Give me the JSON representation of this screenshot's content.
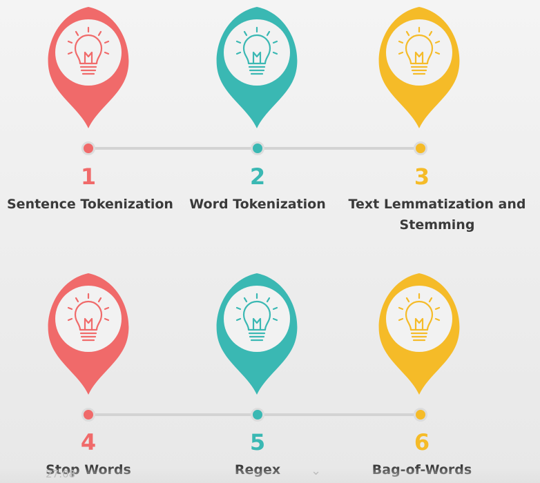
{
  "steps": [
    {
      "number": "1",
      "label": "Sentence Tokenization",
      "color": "#f06a6a"
    },
    {
      "number": "2",
      "label": "Word Tokenization",
      "color": "#3ab8b3"
    },
    {
      "number": "3",
      "label": "Text Lemmatization and",
      "label2": "Stemming",
      "color": "#f5bb28"
    },
    {
      "number": "4",
      "label": "Stop Words",
      "color": "#f06a6a"
    },
    {
      "number": "5",
      "label": "Regex",
      "color": "#3ab8b3"
    },
    {
      "number": "6",
      "label": "Bag-of-Words",
      "color": "#f5bb28"
    }
  ],
  "icons": {
    "pin": "map-pin-icon",
    "bulb": "lightbulb-icon"
  },
  "footer": {
    "time_ghost": "27:08",
    "chevron": "⌄"
  }
}
